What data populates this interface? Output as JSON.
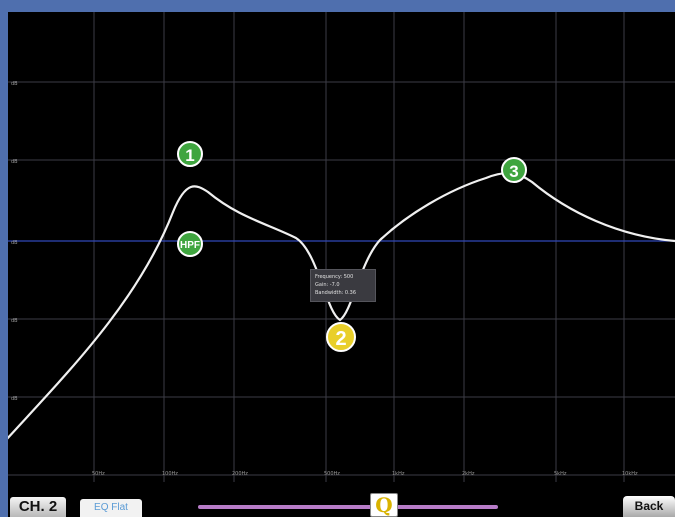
{
  "graph": {
    "y_labels": [
      "dB",
      "dB",
      "dB",
      "dB",
      "dB"
    ],
    "x_labels": [
      "50Hz",
      "100Hz",
      "200Hz",
      "500Hz",
      "1kHz",
      "2kHz",
      "5kHz",
      "10kHz"
    ]
  },
  "bands": {
    "band1": "1",
    "band2": "2",
    "band3": "3",
    "hpf": "HPF"
  },
  "tooltip": {
    "line1": "Frequency: 500",
    "line2": "Gain: -7.0",
    "line3": "Bandwidth: 0.36"
  },
  "toolbar": {
    "channel_label": "CH. 2",
    "eq_flat_label": "EQ Flat",
    "q_label": "Q",
    "back_label": "Back"
  },
  "colors": {
    "background": "#000000",
    "grid": "#3c3c46",
    "zero_line": "#3148b8",
    "curve": "#f0f0f0",
    "band_active": "#e9cf2a",
    "band_inactive": "#3fa53f",
    "q_slider": "#b77cc8"
  }
}
